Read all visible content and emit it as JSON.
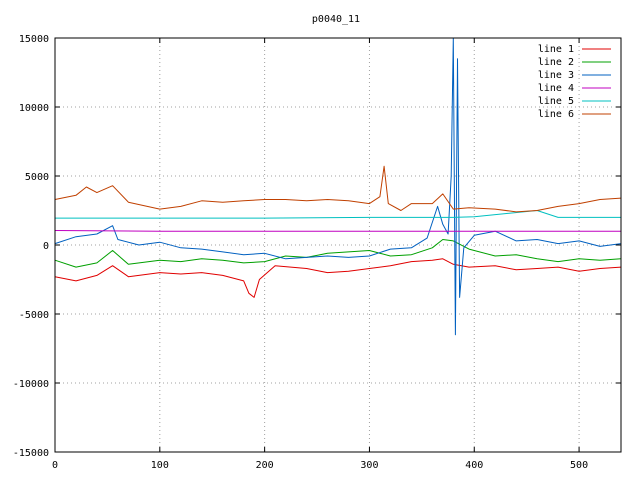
{
  "chart_data": {
    "type": "line",
    "title": "p0040_11",
    "xlabel": "",
    "ylabel": "",
    "xlim": [
      0,
      540
    ],
    "ylim": [
      -15000,
      15000
    ],
    "x_ticks": [
      0,
      100,
      200,
      300,
      400,
      500
    ],
    "y_ticks": [
      -15000,
      -10000,
      -5000,
      0,
      5000,
      10000,
      15000
    ],
    "grid": true,
    "legend_position": "top-right",
    "series": [
      {
        "name": "line 1",
        "color": "#e00000",
        "x": [
          0,
          20,
          40,
          55,
          70,
          100,
          120,
          140,
          160,
          180,
          185,
          190,
          195,
          210,
          240,
          260,
          280,
          300,
          320,
          340,
          360,
          370,
          380,
          395,
          420,
          440,
          460,
          480,
          500,
          520,
          540
        ],
        "y": [
          -2300,
          -2600,
          -2200,
          -1500,
          -2300,
          -2000,
          -2100,
          -2000,
          -2200,
          -2600,
          -3500,
          -3800,
          -2500,
          -1500,
          -1700,
          -2000,
          -1900,
          -1700,
          -1500,
          -1200,
          -1100,
          -1000,
          -1400,
          -1600,
          -1500,
          -1800,
          -1700,
          -1600,
          -1900,
          -1700,
          -1600
        ]
      },
      {
        "name": "line 2",
        "color": "#00a000",
        "x": [
          0,
          20,
          40,
          55,
          70,
          100,
          120,
          140,
          160,
          180,
          200,
          220,
          240,
          260,
          280,
          300,
          320,
          340,
          360,
          370,
          380,
          395,
          420,
          440,
          460,
          480,
          500,
          520,
          540
        ],
        "y": [
          -1100,
          -1600,
          -1300,
          -400,
          -1400,
          -1100,
          -1200,
          -1000,
          -1100,
          -1300,
          -1200,
          -800,
          -900,
          -600,
          -500,
          -400,
          -800,
          -700,
          -200,
          400,
          300,
          -300,
          -800,
          -700,
          -1000,
          -1200,
          -1000,
          -1100,
          -1000
        ]
      },
      {
        "name": "line 3",
        "color": "#0060c0",
        "x": [
          0,
          20,
          40,
          55,
          60,
          80,
          100,
          120,
          140,
          160,
          180,
          200,
          220,
          240,
          260,
          280,
          300,
          320,
          340,
          355,
          365,
          370,
          375,
          378,
          380,
          382,
          384,
          386,
          390,
          400,
          420,
          440,
          460,
          480,
          500,
          520,
          540
        ],
        "y": [
          100,
          600,
          800,
          1400,
          400,
          0,
          200,
          -200,
          -300,
          -500,
          -700,
          -600,
          -1000,
          -900,
          -800,
          -900,
          -800,
          -300,
          -200,
          500,
          2800,
          1500,
          800,
          5000,
          15000,
          -6500,
          13500,
          -3800,
          -200,
          700,
          1000,
          300,
          400,
          100,
          300,
          -100,
          100
        ]
      },
      {
        "name": "line 4",
        "color": "#c000c0",
        "x": [
          0,
          100,
          200,
          300,
          400,
          500,
          540
        ],
        "y": [
          1050,
          1000,
          1000,
          1000,
          1000,
          1000,
          1000
        ]
      },
      {
        "name": "line 5",
        "color": "#00c0c0",
        "x": [
          0,
          100,
          200,
          300,
          380,
          400,
          460,
          480,
          500,
          540
        ],
        "y": [
          1950,
          1950,
          1950,
          2000,
          2000,
          2050,
          2500,
          2000,
          2000,
          2000
        ]
      },
      {
        "name": "line 6",
        "color": "#c04000",
        "x": [
          0,
          20,
          30,
          40,
          55,
          70,
          100,
          120,
          140,
          160,
          180,
          200,
          220,
          240,
          260,
          280,
          300,
          310,
          314,
          318,
          330,
          340,
          360,
          370,
          380,
          395,
          420,
          440,
          460,
          480,
          500,
          520,
          540
        ],
        "y": [
          3300,
          3600,
          4200,
          3800,
          4300,
          3100,
          2600,
          2800,
          3200,
          3100,
          3200,
          3300,
          3300,
          3200,
          3300,
          3200,
          3000,
          3500,
          5700,
          3000,
          2500,
          3000,
          3000,
          3700,
          2600,
          2700,
          2600,
          2400,
          2500,
          2800,
          3000,
          3300,
          3400
        ]
      }
    ]
  }
}
